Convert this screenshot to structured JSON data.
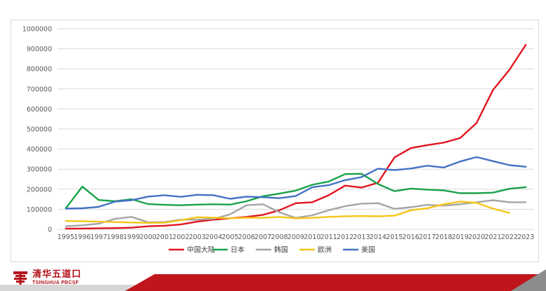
{
  "chart_data": {
    "type": "line",
    "x": [
      "1995",
      "1996",
      "1997",
      "1998",
      "1999",
      "2000",
      "2001",
      "2002",
      "2003",
      "2004",
      "2005",
      "2006",
      "2007",
      "2008",
      "2009",
      "2010",
      "2011",
      "2012",
      "2013",
      "2014",
      "2015",
      "2016",
      "2017",
      "2018",
      "2019",
      "2020",
      "2021",
      "2022",
      "2023"
    ],
    "ylim": [
      0,
      1000000
    ],
    "yticks": [
      "0",
      "100000",
      "200000",
      "300000",
      "400000",
      "500000",
      "600000",
      "700000",
      "800000",
      "900000",
      "1000000"
    ],
    "grid": true,
    "legend_position": "bottom",
    "series": [
      {
        "name": "中国大陆",
        "color": "#e0151f",
        "values": [
          3000,
          4000,
          5000,
          6000,
          8000,
          15000,
          18000,
          24000,
          38000,
          48000,
          55000,
          62000,
          72000,
          95000,
          130000,
          135000,
          170000,
          218000,
          208000,
          232000,
          358000,
          405000,
          420000,
          432000,
          455000,
          530000,
          695000,
          795000,
          920000
        ]
      },
      {
        "name": "日本",
        "color": "#1aa34a",
        "values": [
          105000,
          213000,
          146000,
          140000,
          150000,
          126000,
          122000,
          120000,
          123000,
          125000,
          123000,
          140000,
          165000,
          178000,
          193000,
          222000,
          238000,
          275000,
          277000,
          226000,
          190000,
          203000,
          198000,
          194000,
          180000,
          180000,
          183000,
          202000,
          210000
        ]
      },
      {
        "name": "韩国",
        "color": "#a5a5a5",
        "values": [
          15000,
          20000,
          28000,
          52000,
          62000,
          35000,
          36000,
          48000,
          48000,
          52000,
          75000,
          120000,
          125000,
          85000,
          57000,
          70000,
          95000,
          115000,
          128000,
          130000,
          102000,
          110000,
          122000,
          118000,
          125000,
          135000,
          145000,
          135000,
          135000
        ]
      },
      {
        "name": "欧洲",
        "color": "#f5c518",
        "values": [
          42000,
          40000,
          38000,
          36000,
          34000,
          32000,
          33000,
          45000,
          60000,
          58000,
          55000,
          58000,
          57000,
          62000,
          55000,
          57000,
          62000,
          65000,
          66000,
          65000,
          68000,
          95000,
          105000,
          125000,
          138000,
          132000,
          103000,
          82000,
          null
        ]
      },
      {
        "name": "美国",
        "color": "#4472c4",
        "values": [
          103000,
          105000,
          112000,
          138000,
          145000,
          163000,
          170000,
          162000,
          172000,
          170000,
          152000,
          163000,
          160000,
          155000,
          166000,
          210000,
          220000,
          245000,
          260000,
          302000,
          295000,
          303000,
          317000,
          308000,
          338000,
          360000,
          340000,
          320000,
          312000
        ]
      }
    ]
  },
  "footer": {
    "logo_cn": "清华五道口",
    "logo_en": "TSINGHUA PBCSF"
  }
}
